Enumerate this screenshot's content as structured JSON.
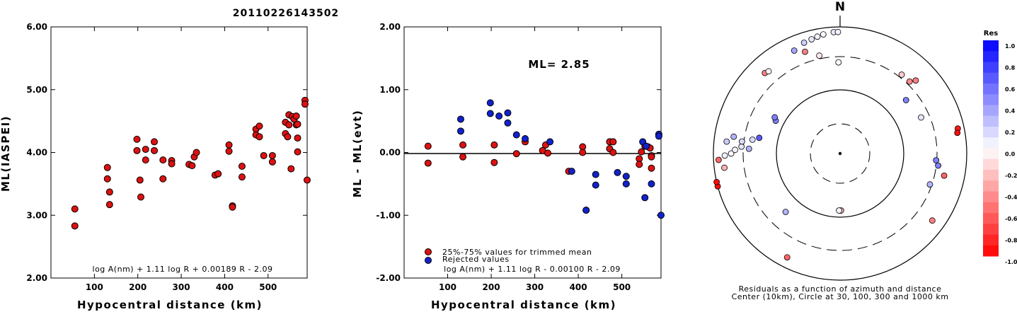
{
  "title": "20110226143502",
  "chart_data": [
    {
      "type": "scatter",
      "xlabel": "Hypocentral distance (km)",
      "ylabel": "ML(IASPEI)",
      "xlim": [
        0,
        590
      ],
      "ylim": [
        2,
        6
      ],
      "xticks": [
        "100",
        "200",
        "300",
        "400",
        "500"
      ],
      "yticks": [
        "2.00",
        "3.00",
        "4.00",
        "5.00",
        "6.00"
      ],
      "formula": "log A(nm) + 1.11 log R + 0.00189 R - 2.09",
      "series": [
        {
          "color": "#dd1111",
          "points": [
            [
              55,
              3.1
            ],
            [
              55,
              2.83
            ],
            [
              130,
              3.76
            ],
            [
              130,
              3.58
            ],
            [
              135,
              3.37
            ],
            [
              135,
              3.17
            ],
            [
              198,
              4.21
            ],
            [
              198,
              4.03
            ],
            [
              205,
              3.56
            ],
            [
              207,
              3.29
            ],
            [
              218,
              4.05
            ],
            [
              218,
              3.88
            ],
            [
              238,
              4.17
            ],
            [
              238,
              4.03
            ],
            [
              258,
              3.88
            ],
            [
              258,
              3.58
            ],
            [
              278,
              3.87
            ],
            [
              278,
              3.82
            ],
            [
              318,
              3.81
            ],
            [
              325,
              3.79
            ],
            [
              330,
              3.93
            ],
            [
              335,
              4.0
            ],
            [
              378,
              3.64
            ],
            [
              385,
              3.66
            ],
            [
              410,
              4.12
            ],
            [
              410,
              4.02
            ],
            [
              418,
              3.15
            ],
            [
              418,
              3.13
            ],
            [
              440,
              3.78
            ],
            [
              440,
              3.61
            ],
            [
              472,
              4.37
            ],
            [
              472,
              4.28
            ],
            [
              480,
              4.42
            ],
            [
              480,
              4.25
            ],
            [
              490,
              3.95
            ],
            [
              510,
              3.95
            ],
            [
              510,
              3.85
            ],
            [
              540,
              4.48
            ],
            [
              540,
              4.3
            ],
            [
              545,
              4.25
            ],
            [
              548,
              4.6
            ],
            [
              548,
              4.44
            ],
            [
              553,
              3.74
            ],
            [
              556,
              4.57
            ],
            [
              560,
              4.53
            ],
            [
              565,
              4.58
            ],
            [
              565,
              4.44
            ],
            [
              568,
              4.45
            ],
            [
              568,
              4.23
            ],
            [
              568,
              4.01
            ],
            [
              585,
              4.83
            ],
            [
              585,
              4.77
            ],
            [
              590,
              3.56
            ]
          ]
        }
      ]
    },
    {
      "type": "scatter",
      "xlabel": "Hypocentral distance (km)",
      "ylabel": "ML - ML(evt)",
      "xlim": [
        0,
        590
      ],
      "ylim": [
        -2,
        2
      ],
      "xticks": [
        "100",
        "200",
        "300",
        "400",
        "500"
      ],
      "yticks": [
        "-2.00",
        "-1.00",
        "0.00",
        "1.00",
        "2.00"
      ],
      "annotation": "ML= 2.85",
      "formula": "log A(nm) + 1.11 log R - 0.00100 R - 2.09",
      "reference_line": 0,
      "series": [
        {
          "name": "25%-75% values for trimmed mean",
          "color": "#dd1111",
          "points": [
            [
              55,
              0.1
            ],
            [
              55,
              -0.17
            ],
            [
              135,
              0.12
            ],
            [
              135,
              -0.07
            ],
            [
              207,
              0.12
            ],
            [
              207,
              -0.16
            ],
            [
              258,
              -0.02
            ],
            [
              278,
              0.17
            ],
            [
              318,
              0.03
            ],
            [
              325,
              0.12
            ],
            [
              330,
              -0.01
            ],
            [
              378,
              -0.3
            ],
            [
              410,
              0.09
            ],
            [
              410,
              0.0
            ],
            [
              472,
              0.17
            ],
            [
              472,
              0.06
            ],
            [
              480,
              0.17
            ],
            [
              480,
              0.0
            ],
            [
              540,
              -0.1
            ],
            [
              540,
              -0.19
            ],
            [
              545,
              0.01
            ],
            [
              553,
              0.1
            ],
            [
              560,
              0.09
            ],
            [
              565,
              0.07
            ],
            [
              568,
              -0.05
            ],
            [
              568,
              -0.25
            ],
            [
              568,
              -0.07
            ]
          ]
        },
        {
          "name": "Rejected values",
          "color": "#1122cc",
          "points": [
            [
              130,
              0.53
            ],
            [
              130,
              0.34
            ],
            [
              198,
              0.79
            ],
            [
              198,
              0.62
            ],
            [
              218,
              0.58
            ],
            [
              238,
              0.63
            ],
            [
              238,
              0.47
            ],
            [
              258,
              0.28
            ],
            [
              278,
              0.22
            ],
            [
              335,
              0.17
            ],
            [
              385,
              -0.3
            ],
            [
              418,
              -0.92
            ],
            [
              418,
              -0.92
            ],
            [
              440,
              -0.35
            ],
            [
              440,
              -0.52
            ],
            [
              490,
              -0.32
            ],
            [
              510,
              -0.38
            ],
            [
              510,
              -0.5
            ],
            [
              548,
              0.17
            ],
            [
              553,
              -0.72
            ],
            [
              556,
              0.1
            ],
            [
              568,
              -0.5
            ],
            [
              585,
              0.29
            ],
            [
              585,
              0.26
            ],
            [
              590,
              -1.0
            ]
          ]
        }
      ]
    },
    {
      "type": "polar-scatter",
      "north_label": "N",
      "caption_line1": "Residuals as a function of azimuth and distance",
      "caption_line2": "Center (10km), Circle at 30, 100, 300 and 1000 km",
      "rings_km": [
        30,
        100,
        300,
        1000
      ],
      "colorbar_title": "Res",
      "colorbar_ticks": [
        "1.0",
        "0.8",
        "0.6",
        "0.4",
        "0.2",
        "0.0",
        "-0.2",
        "-0.4",
        "-0.6",
        "-0.8",
        "-1.0"
      ],
      "colorbar_range": [
        -1.0,
        1.0
      ],
      "points": [
        {
          "az": 336,
          "r": 0.89,
          "res": 0.35
        },
        {
          "az": 342,
          "r": 0.92,
          "res": 0.2
        },
        {
          "az": 346,
          "r": 0.93,
          "res": 0.1
        },
        {
          "az": 349,
          "r": 0.94,
          "res": 0.05
        },
        {
          "az": 352,
          "r": 0.95,
          "res": 0.02
        },
        {
          "az": 357,
          "r": 0.96,
          "res": 0.1
        },
        {
          "az": 359,
          "r": 0.96,
          "res": 0.05
        },
        {
          "az": 348,
          "r": 0.79,
          "res": -0.1
        },
        {
          "az": 341,
          "r": 0.85,
          "res": -0.5
        },
        {
          "az": 359,
          "r": 0.72,
          "res": 0.02
        },
        {
          "az": 38,
          "r": 0.79,
          "res": -0.2
        },
        {
          "az": 44,
          "r": 0.79,
          "res": -0.45
        },
        {
          "az": 46,
          "r": 0.83,
          "res": -0.5
        },
        {
          "az": 51,
          "r": 0.67,
          "res": 0.5
        },
        {
          "az": 66,
          "r": 0.7,
          "res": 0.1
        },
        {
          "az": 78,
          "r": 0.95,
          "res": -0.9
        },
        {
          "az": 80,
          "r": 0.94,
          "res": -0.95
        },
        {
          "az": 102,
          "r": 0.84,
          "res": -0.6
        },
        {
          "az": 94,
          "r": 0.76,
          "res": 0.5
        },
        {
          "az": 97,
          "r": 0.78,
          "res": 0.5
        },
        {
          "az": 109,
          "r": 0.75,
          "res": 0.3
        },
        {
          "az": 126,
          "r": 0.9,
          "res": -0.5
        },
        {
          "az": 179,
          "r": 0.45,
          "res": -0.3
        },
        {
          "az": 181,
          "r": 0.45,
          "res": 0.05
        },
        {
          "az": 207,
          "r": 0.92,
          "res": -0.6
        },
        {
          "az": 223,
          "r": 0.63,
          "res": 0.3
        },
        {
          "az": 255,
          "r": 1.0,
          "res": -0.95
        },
        {
          "az": 257,
          "r": 1.0,
          "res": -0.95
        },
        {
          "az": 263,
          "r": 0.92,
          "res": -0.3
        },
        {
          "az": 267,
          "r": 0.96,
          "res": -0.6
        },
        {
          "az": 269,
          "r": 0.91,
          "res": 0.05
        },
        {
          "az": 270,
          "r": 0.86,
          "res": 0.02
        },
        {
          "az": 272,
          "r": 0.83,
          "res": 0.05
        },
        {
          "az": 274,
          "r": 0.78,
          "res": 0.1
        },
        {
          "az": 273,
          "r": 0.72,
          "res": 0.3
        },
        {
          "az": 276,
          "r": 0.9,
          "res": 0.2
        },
        {
          "az": 277,
          "r": 0.78,
          "res": 0.15
        },
        {
          "az": 279,
          "r": 0.85,
          "res": 0.3
        },
        {
          "az": 279,
          "r": 0.7,
          "res": 0.15
        },
        {
          "az": 281,
          "r": 0.65,
          "res": 0.65
        },
        {
          "az": 297,
          "r": 0.57,
          "res": 0.5
        },
        {
          "az": 299,
          "r": 0.59,
          "res": 0.5
        },
        {
          "az": 317,
          "r": 0.87,
          "res": -0.5
        },
        {
          "az": 319,
          "r": 0.86,
          "res": 0.05
        }
      ]
    }
  ]
}
